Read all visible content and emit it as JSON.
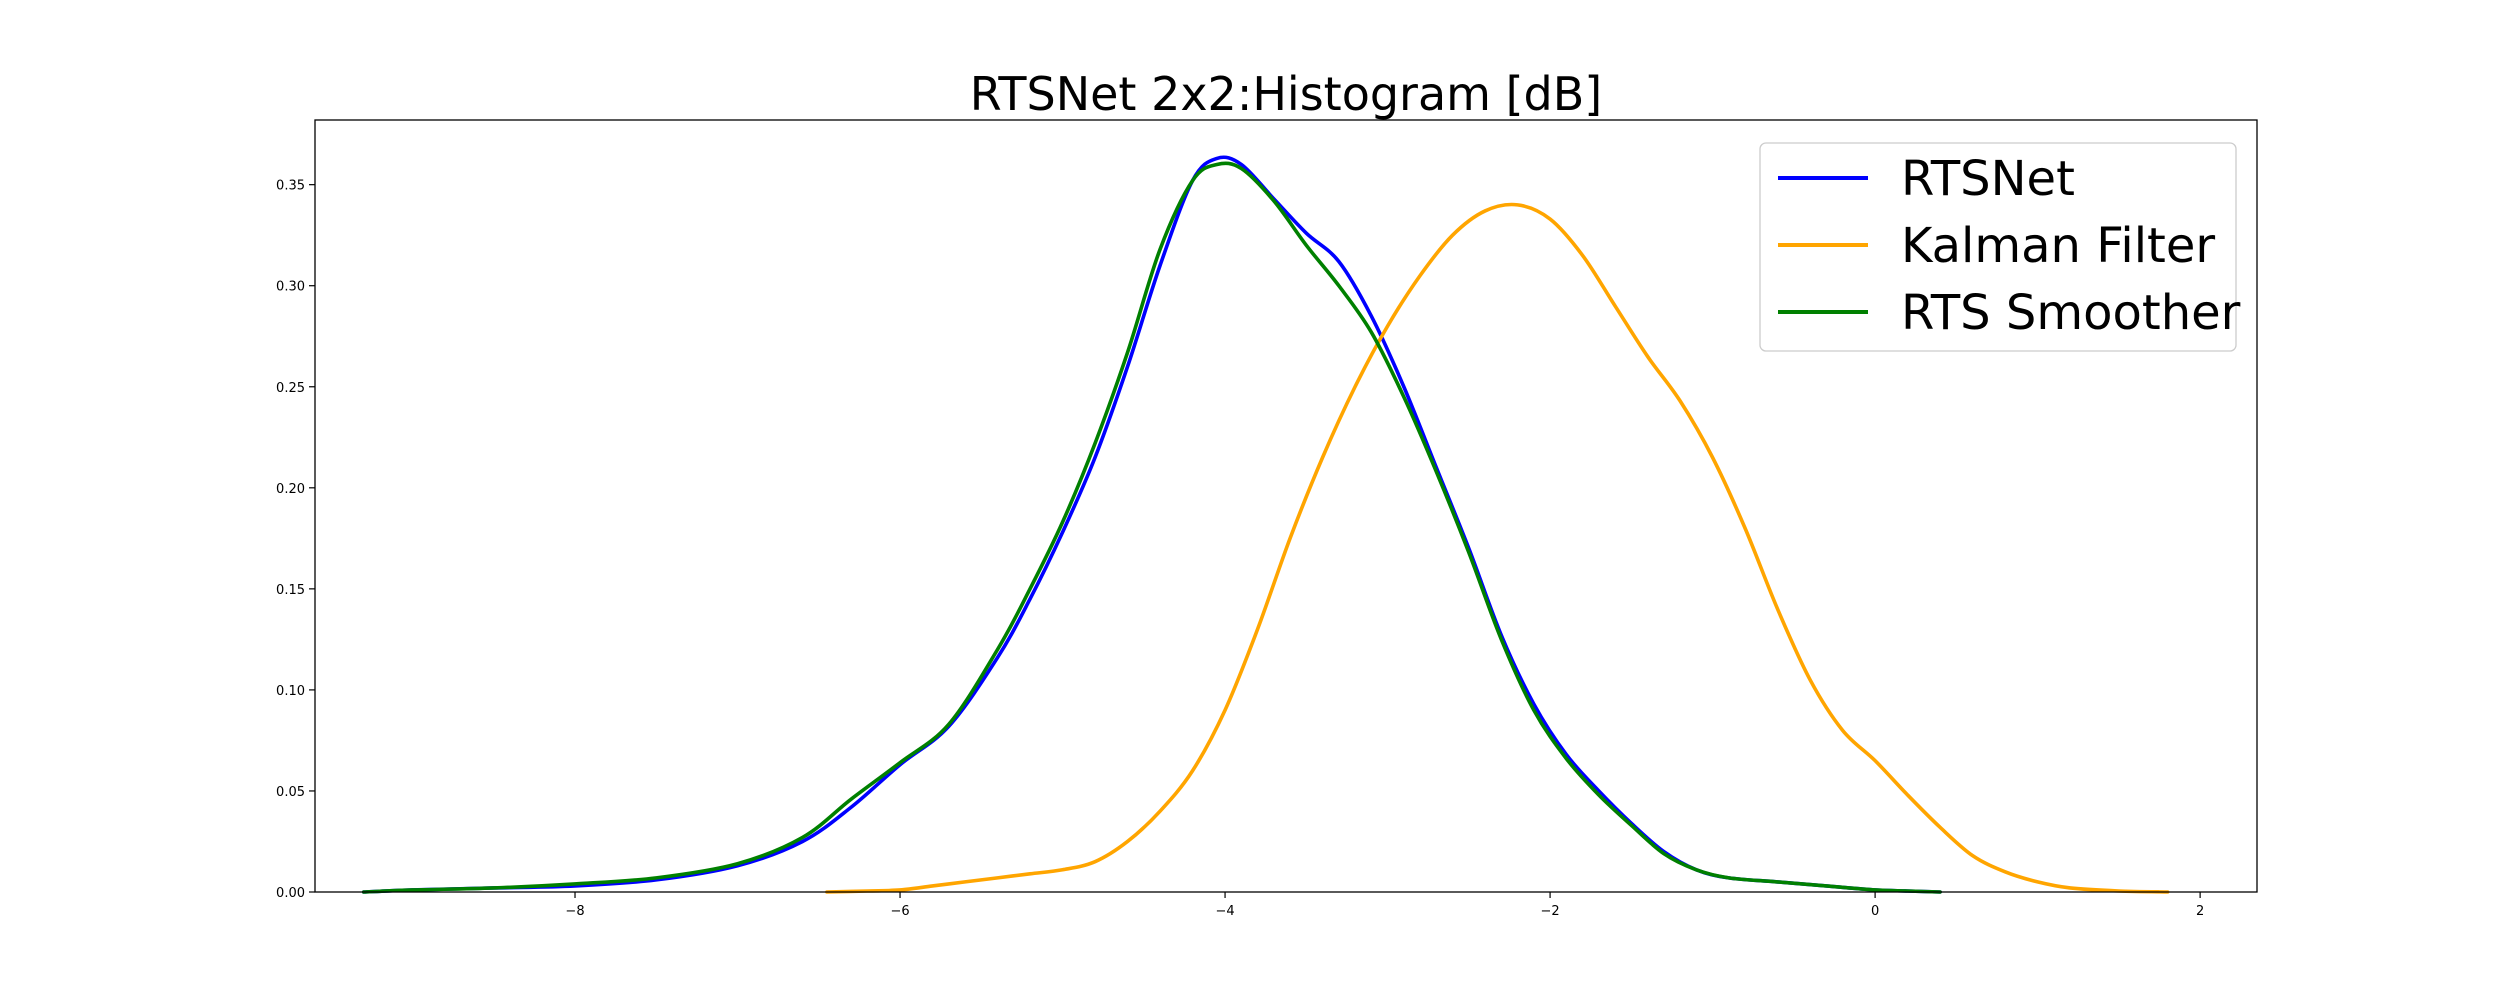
{
  "chart_data": {
    "type": "line",
    "title": "RTSNet 2x2:Histogram [dB]",
    "xlabel": "",
    "ylabel": "",
    "xlim": [
      -9.6,
      2.35
    ],
    "ylim": [
      0.0,
      0.382
    ],
    "xticks": [
      -8,
      -6,
      -4,
      -2,
      0,
      2
    ],
    "xtick_labels": [
      "−8",
      "−6",
      "−4",
      "−2",
      "0",
      "2"
    ],
    "yticks": [
      0.0,
      0.05,
      0.1,
      0.15,
      0.2,
      0.25,
      0.3,
      0.35
    ],
    "ytick_labels": [
      "0.00",
      "0.05",
      "0.10",
      "0.15",
      "0.20",
      "0.25",
      "0.30",
      "0.35"
    ],
    "grid": false,
    "legend_position": "upper right",
    "series": [
      {
        "name": "RTSNet",
        "color": "#0000ff",
        "x": [
          -9.3,
          -9.0,
          -8.5,
          -8.0,
          -7.5,
          -7.0,
          -6.6,
          -6.3,
          -6.0,
          -5.7,
          -5.4,
          -5.2,
          -5.0,
          -4.8,
          -4.6,
          -4.4,
          -4.2,
          -4.05,
          -3.9,
          -3.7,
          -3.5,
          -3.3,
          -3.1,
          -2.9,
          -2.7,
          -2.5,
          -2.3,
          -2.1,
          -1.9,
          -1.7,
          -1.5,
          -1.3,
          -1.1,
          -0.9,
          -0.6,
          -0.3,
          0.0,
          0.2,
          0.4
        ],
        "y": [
          0.0,
          0.001,
          0.002,
          0.003,
          0.006,
          0.013,
          0.025,
          0.042,
          0.063,
          0.082,
          0.116,
          0.145,
          0.178,
          0.215,
          0.26,
          0.31,
          0.352,
          0.363,
          0.36,
          0.343,
          0.326,
          0.312,
          0.285,
          0.25,
          0.21,
          0.17,
          0.127,
          0.093,
          0.068,
          0.05,
          0.034,
          0.02,
          0.011,
          0.007,
          0.005,
          0.003,
          0.001,
          0.0005,
          0.0
        ]
      },
      {
        "name": "Kalman Filter",
        "color": "#ffa500",
        "x": [
          -6.45,
          -6.2,
          -6.0,
          -5.8,
          -5.6,
          -5.4,
          -5.2,
          -5.0,
          -4.8,
          -4.6,
          -4.4,
          -4.2,
          -4.0,
          -3.8,
          -3.6,
          -3.4,
          -3.2,
          -3.0,
          -2.8,
          -2.6,
          -2.4,
          -2.2,
          -2.0,
          -1.8,
          -1.6,
          -1.4,
          -1.2,
          -1.0,
          -0.8,
          -0.6,
          -0.4,
          -0.2,
          0.0,
          0.2,
          0.4,
          0.6,
          0.8,
          1.0,
          1.2,
          1.5,
          1.8
        ],
        "y": [
          0.0,
          0.0005,
          0.001,
          0.003,
          0.005,
          0.007,
          0.009,
          0.011,
          0.015,
          0.025,
          0.04,
          0.06,
          0.09,
          0.13,
          0.175,
          0.215,
          0.25,
          0.28,
          0.305,
          0.325,
          0.337,
          0.34,
          0.333,
          0.315,
          0.29,
          0.265,
          0.243,
          0.215,
          0.18,
          0.14,
          0.105,
          0.08,
          0.065,
          0.048,
          0.032,
          0.018,
          0.01,
          0.005,
          0.002,
          0.0005,
          0.0
        ]
      },
      {
        "name": "RTS Smoother",
        "color": "#008000",
        "x": [
          -9.3,
          -9.0,
          -8.5,
          -8.0,
          -7.5,
          -7.0,
          -6.6,
          -6.3,
          -6.0,
          -5.7,
          -5.4,
          -5.2,
          -5.0,
          -4.8,
          -4.6,
          -4.4,
          -4.2,
          -4.05,
          -3.9,
          -3.7,
          -3.5,
          -3.3,
          -3.1,
          -2.9,
          -2.7,
          -2.5,
          -2.3,
          -2.1,
          -1.9,
          -1.7,
          -1.5,
          -1.3,
          -1.1,
          -0.9,
          -0.6,
          -0.3,
          0.0,
          0.2,
          0.4
        ],
        "y": [
          0.0,
          0.001,
          0.002,
          0.004,
          0.007,
          0.014,
          0.027,
          0.046,
          0.064,
          0.083,
          0.12,
          0.15,
          0.183,
          0.222,
          0.267,
          0.318,
          0.352,
          0.36,
          0.358,
          0.342,
          0.32,
          0.3,
          0.277,
          0.245,
          0.208,
          0.168,
          0.125,
          0.09,
          0.066,
          0.048,
          0.033,
          0.019,
          0.011,
          0.007,
          0.005,
          0.003,
          0.001,
          0.0005,
          0.0
        ]
      }
    ]
  }
}
